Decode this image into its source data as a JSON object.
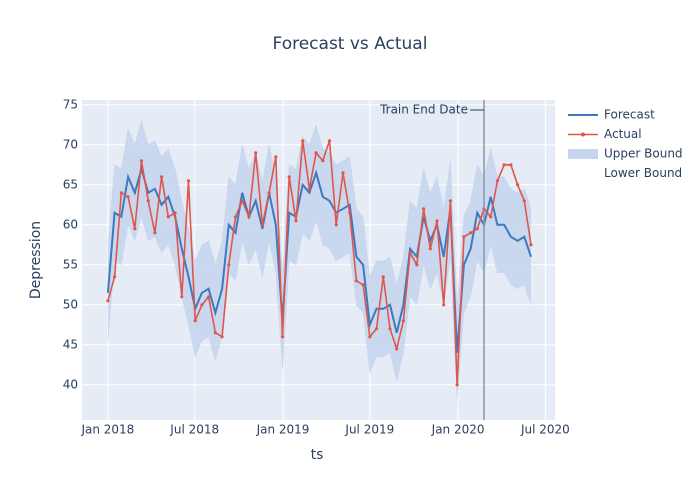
{
  "chart_data": {
    "type": "line",
    "title": "Forecast vs Actual",
    "x_label": "ts",
    "y_label": "Depression",
    "x": [
      "2018-01-01",
      "2018-01-15",
      "2018-01-29",
      "2018-02-12",
      "2018-02-26",
      "2018-03-12",
      "2018-03-26",
      "2018-04-09",
      "2018-04-23",
      "2018-05-07",
      "2018-05-21",
      "2018-06-04",
      "2018-06-18",
      "2018-07-02",
      "2018-07-16",
      "2018-07-30",
      "2018-08-13",
      "2018-08-27",
      "2018-09-10",
      "2018-09-24",
      "2018-10-08",
      "2018-10-22",
      "2018-11-05",
      "2018-11-19",
      "2018-12-03",
      "2018-12-17",
      "2018-12-31",
      "2019-01-14",
      "2019-01-28",
      "2019-02-11",
      "2019-02-25",
      "2019-03-11",
      "2019-03-25",
      "2019-04-08",
      "2019-04-22",
      "2019-05-06",
      "2019-05-20",
      "2019-06-03",
      "2019-06-17",
      "2019-07-01",
      "2019-07-15",
      "2019-07-29",
      "2019-08-12",
      "2019-08-26",
      "2019-09-09",
      "2019-09-23",
      "2019-10-07",
      "2019-10-21",
      "2019-11-04",
      "2019-11-18",
      "2019-12-02",
      "2019-12-16",
      "2019-12-30",
      "2020-01-13",
      "2020-01-27",
      "2020-02-10",
      "2020-02-24",
      "2020-03-09",
      "2020-03-23",
      "2020-04-06",
      "2020-04-20",
      "2020-05-04",
      "2020-05-18",
      "2020-06-01"
    ],
    "series": [
      {
        "name": "Forecast",
        "color": "#3d79bd",
        "role": "line",
        "values": [
          51.5,
          61.5,
          61,
          66,
          64,
          67,
          64,
          64.5,
          62.5,
          63.5,
          61,
          57,
          53.5,
          49.5,
          51.5,
          52,
          49,
          52,
          60,
          59,
          64,
          61,
          63,
          59.5,
          64,
          60,
          48,
          61.5,
          61,
          65,
          64,
          66.5,
          63.5,
          63,
          61.5,
          62,
          62.5,
          56,
          55,
          47.5,
          49.5,
          49.5,
          50,
          46.5,
          50,
          57,
          56,
          61,
          58,
          60,
          56,
          62,
          44,
          55,
          57,
          61.5,
          60,
          63.5,
          60,
          60,
          58.5,
          58,
          58.5,
          56
        ]
      },
      {
        "name": "Actual",
        "color": "#e0564b",
        "role": "markers",
        "values": [
          50.5,
          53.5,
          64,
          63.5,
          59.5,
          68,
          63,
          59,
          66,
          61,
          61.5,
          51,
          65.5,
          48,
          50,
          51,
          46.5,
          46,
          55,
          61,
          63,
          61,
          69,
          60,
          64,
          68.5,
          46,
          66,
          60.5,
          70.5,
          64.5,
          69,
          68,
          70.5,
          60,
          66.5,
          61.5,
          53,
          52.5,
          46,
          47,
          53.5,
          47,
          44.5,
          48,
          56.5,
          55,
          62,
          57,
          60.5,
          50,
          63,
          40,
          58.5,
          59,
          59.5,
          62,
          61,
          65.5,
          67.5,
          67.5,
          65,
          63,
          57.5
        ]
      },
      {
        "name": "Upper Bound",
        "color": "#c6d6ee",
        "role": "band",
        "values": [
          57.5,
          67.5,
          67,
          72,
          70,
          73,
          70,
          70.5,
          68.5,
          69.5,
          67,
          63,
          59.5,
          55.5,
          57.5,
          58,
          55,
          58,
          66,
          65,
          70,
          67,
          69,
          65.5,
          70,
          66,
          54,
          67.5,
          67,
          71,
          70,
          72.5,
          69.5,
          69,
          67.5,
          68,
          68.5,
          62,
          61,
          53.5,
          55.5,
          55.5,
          56,
          52.5,
          56,
          63,
          62,
          67,
          64,
          66,
          62,
          68,
          50,
          61,
          63,
          67.5,
          66,
          69.5,
          66,
          66,
          64.5,
          64,
          64.5,
          62
        ]
      },
      {
        "name": "Lower Bound",
        "color": "#c6d6ee",
        "role": "band",
        "values": [
          45.5,
          55.5,
          55,
          60,
          58,
          61,
          58,
          58.5,
          56.5,
          57.5,
          55,
          51,
          47.5,
          43.5,
          45.5,
          46,
          43,
          46,
          54,
          53,
          58,
          55,
          57,
          53.5,
          58,
          54,
          42,
          55.5,
          55,
          59,
          58,
          60.5,
          57.5,
          57,
          55.5,
          56,
          56.5,
          50,
          49,
          41.5,
          43.5,
          43.5,
          44,
          40.5,
          44,
          51,
          50,
          55,
          52,
          54,
          50,
          56,
          38,
          49,
          51,
          55.5,
          54,
          57.5,
          54,
          54,
          52.5,
          52,
          52.5,
          50
        ]
      }
    ],
    "xlim": [
      "2017-11-08",
      "2020-07-21"
    ],
    "xticks": [
      {
        "value": "2018-01-01",
        "label": "Jan 2018"
      },
      {
        "value": "2018-07-01",
        "label": "Jul 2018"
      },
      {
        "value": "2019-01-01",
        "label": "Jan 2019"
      },
      {
        "value": "2019-07-01",
        "label": "Jul 2019"
      },
      {
        "value": "2020-01-01",
        "label": "Jan 2020"
      },
      {
        "value": "2020-07-01",
        "label": "Jul 2020"
      }
    ],
    "ylim": [
      35.6,
      75.6
    ],
    "yticks": [
      40,
      45,
      50,
      55,
      60,
      65,
      70,
      75
    ],
    "grid": true,
    "annotation": {
      "x": "2020-02-24",
      "text": "Train End Date"
    },
    "legend": "right"
  }
}
